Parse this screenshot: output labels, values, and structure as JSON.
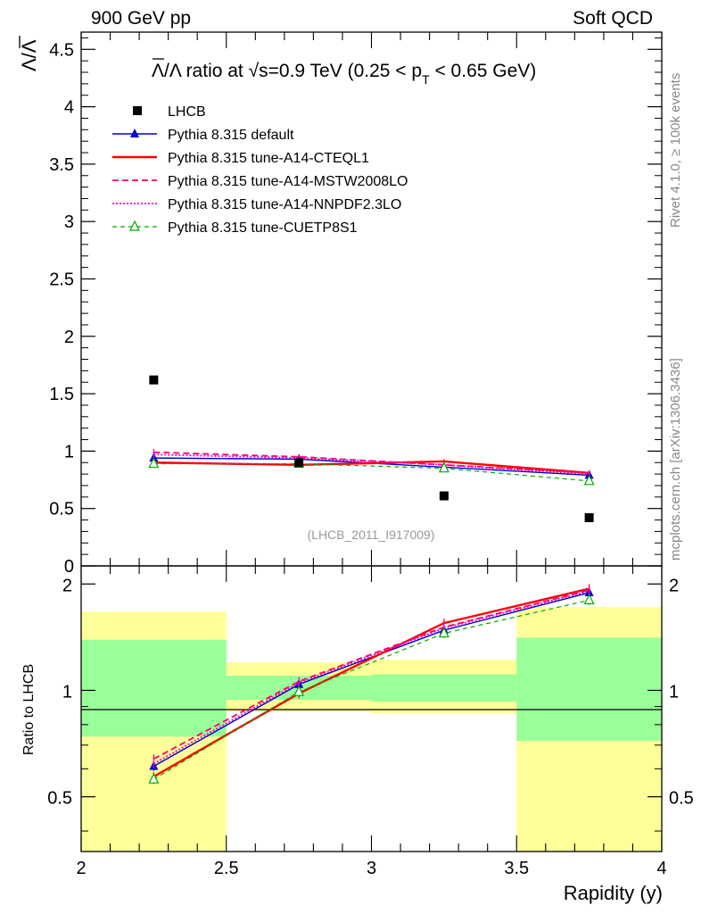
{
  "header": {
    "left_label": "900 GeV pp",
    "right_label": "Soft QCD"
  },
  "side_labels": {
    "rivet": "Rivet 4.1.0, ≥ 100k events",
    "mcplots": "mcplots.cern.ch [arXiv:1306.3436]"
  },
  "chart_data": [
    {
      "type": "line",
      "panel": "main",
      "title": "Λ̅/Λ ratio at √s=0.9 TeV (0.25 < pT < 0.65 GeV)",
      "title_parts": {
        "lead": "Λ/Λ ratio at ",
        "sqrt": "√",
        "s_rest": "s=0.9 TeV (0.25 < p",
        "sub": "T",
        "tail": " < 0.65 GeV)"
      },
      "ylabel": "Λ/Λ",
      "watermark": "(LHCB_2011_I917009)",
      "xlim": [
        2,
        4
      ],
      "ylim": [
        0,
        4.65
      ],
      "yticks": [
        "0",
        "0.5",
        "1",
        "1.5",
        "2",
        "2.5",
        "3",
        "3.5",
        "4",
        "4.5"
      ],
      "x": [
        2.25,
        2.75,
        3.25,
        3.75
      ],
      "data": {
        "name": "LHCB",
        "values": [
          1.62,
          0.9,
          0.61,
          0.42
        ]
      },
      "series": [
        {
          "name": "Pythia 8.315 default",
          "color": "#0000cc",
          "style": "solid",
          "marker": "triangle-filled",
          "values": [
            0.94,
            0.93,
            0.86,
            0.79
          ],
          "err": [
            0.02,
            0.02,
            0.02,
            0.02
          ]
        },
        {
          "name": "Pythia 8.315 tune-A14-CTEQL1",
          "color": "#ff0000",
          "style": "solid-thick",
          "marker": "none",
          "values": [
            0.9,
            0.88,
            0.91,
            0.81
          ],
          "err": [
            0.02,
            0.02,
            0.02,
            0.02
          ]
        },
        {
          "name": "Pythia 8.315 tune-A14-MSTW2008LO",
          "color": "#ff0066",
          "style": "dashed",
          "marker": "none",
          "values": [
            0.99,
            0.95,
            0.88,
            0.81
          ],
          "err": [
            0.03,
            0.02,
            0.02,
            0.02
          ]
        },
        {
          "name": "Pythia 8.315 tune-A14-NNPDF2.3LO",
          "color": "#ff00cc",
          "style": "dotted",
          "marker": "none",
          "values": [
            0.97,
            0.94,
            0.88,
            0.8
          ],
          "err": [
            0.03,
            0.02,
            0.02,
            0.02
          ]
        },
        {
          "name": "Pythia 8.315 tune-CUETP8S1",
          "color": "#00aa00",
          "style": "dashed-thin",
          "marker": "triangle-open",
          "values": [
            0.89,
            0.89,
            0.85,
            0.74
          ],
          "err": [
            0.02,
            0.02,
            0.02,
            0.02
          ]
        }
      ]
    },
    {
      "type": "line",
      "panel": "ratio",
      "xlabel": "Rapidity (y)",
      "ylabel": "Ratio to LHCB",
      "xlim": [
        2,
        4
      ],
      "ylim": [
        0.35,
        2.25
      ],
      "xticks": [
        "2",
        "2.5",
        "3",
        "3.5",
        "4"
      ],
      "yticks": [
        "0.5",
        "1",
        "2"
      ],
      "bands": {
        "bins": [
          [
            2.0,
            2.5
          ],
          [
            2.5,
            3.0
          ],
          [
            3.0,
            3.5
          ],
          [
            3.5,
            4.0
          ]
        ],
        "yellow": [
          [
            0.35,
            1.67
          ],
          [
            0.87,
            1.2
          ],
          [
            0.86,
            1.22
          ],
          [
            0.35,
            1.72
          ]
        ],
        "green": [
          [
            0.74,
            1.39
          ],
          [
            0.94,
            1.1
          ],
          [
            0.93,
            1.11
          ],
          [
            0.72,
            1.41
          ]
        ]
      },
      "series": [
        {
          "name": "Pythia 8.315 default",
          "values": [
            0.61,
            1.04,
            1.48,
            1.89
          ]
        },
        {
          "name": "Pythia 8.315 tune-A14-CTEQL1",
          "values": [
            0.57,
            0.98,
            1.55,
            1.94
          ]
        },
        {
          "name": "Pythia 8.315 tune-A14-MSTW2008LO",
          "values": [
            0.64,
            1.06,
            1.51,
            1.92
          ]
        },
        {
          "name": "Pythia 8.315 tune-A14-NNPDF2.3LO",
          "values": [
            0.62,
            1.05,
            1.5,
            1.91
          ]
        },
        {
          "name": "Pythia 8.315 tune-CUETP8S1",
          "values": [
            0.56,
            0.99,
            1.45,
            1.8
          ]
        }
      ]
    }
  ]
}
